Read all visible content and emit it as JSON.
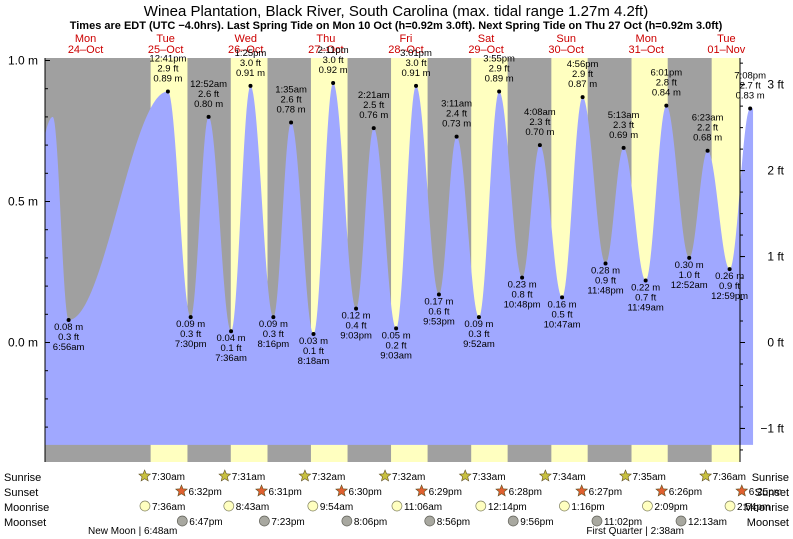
{
  "header": {
    "title": "Winea Plantation, Black River, South Carolina (max. tidal range 1.27m 4.2ft)",
    "subtitle": "Times are EDT (UTC −4.0hrs). Last Spring Tide on Mon 10 Oct (h=0.92m 3.0ft). Next Spring Tide on Thu 27 Oct (h=0.92m 3.0ft)"
  },
  "days": [
    {
      "name": "Mon",
      "date": "24–Oct"
    },
    {
      "name": "Tue",
      "date": "25–Oct"
    },
    {
      "name": "Wed",
      "date": "26–Oct"
    },
    {
      "name": "Thu",
      "date": "27–Oct"
    },
    {
      "name": "Fri",
      "date": "28–Oct"
    },
    {
      "name": "Sat",
      "date": "29–Oct"
    },
    {
      "name": "Sun",
      "date": "30–Oct"
    },
    {
      "name": "Mon",
      "date": "31–Oct"
    },
    {
      "name": "Tue",
      "date": "01–Nov"
    }
  ],
  "chart_data": {
    "type": "area",
    "y_unit_left": "m",
    "y_unit_right": "ft",
    "ylim_m": [
      -0.37,
      1.06
    ],
    "left_ticks": [
      "1.0 m",
      "0.5 m",
      "0.0 m"
    ],
    "left_tick_values": [
      1.0,
      0.5,
      0.0
    ],
    "right_ticks": [
      "3 ft",
      "2 ft",
      "1 ft",
      "0 ft",
      "−1 ft"
    ],
    "right_tick_values": [
      3,
      2,
      1,
      0,
      -1
    ],
    "x_start": "24-Oct 00:00",
    "x_end": "02-Nov 00:00",
    "x_unit": "hours since 24-Oct 00:00",
    "data_range_hours": [
      0,
      212
    ],
    "first_high": {
      "hour": 2.2,
      "m": 0.8
    },
    "daylight": [
      {
        "sunrise": "25-Oct 07:30",
        "sunset": "25-Oct 18:32"
      },
      {
        "sunrise": "26-Oct 07:31",
        "sunset": "26-Oct 18:31"
      },
      {
        "sunrise": "27-Oct 07:32",
        "sunset": "27-Oct 18:30"
      },
      {
        "sunrise": "28-Oct 07:32",
        "sunset": "28-Oct 18:29"
      },
      {
        "sunrise": "29-Oct 07:33",
        "sunset": "29-Oct 18:28"
      },
      {
        "sunrise": "30-Oct 07:34",
        "sunset": "30-Oct 18:27"
      },
      {
        "sunrise": "31-Oct 07:35",
        "sunset": "31-Oct 18:26"
      },
      {
        "sunrise": "01-Nov 07:36",
        "sunset": "01-Nov 18:25"
      }
    ],
    "tides": [
      {
        "hour": 6.93,
        "time": "6:56 am",
        "m": 0.08,
        "m_label": "0.08 m",
        "ft_label": "0.3 ft",
        "type": "low"
      },
      {
        "hour": 36.68,
        "time": "12:41 pm",
        "m": 0.89,
        "m_label": "0.89 m",
        "ft_label": "2.9 ft",
        "type": "high"
      },
      {
        "hour": 43.5,
        "time": "7:30 pm",
        "m": 0.09,
        "m_label": "0.09 m",
        "ft_label": "0.3 ft",
        "type": "low"
      },
      {
        "hour": 48.87,
        "time": "12:52 am",
        "m": 0.8,
        "m_label": "0.80 m",
        "ft_label": "2.6 ft",
        "type": "high"
      },
      {
        "hour": 55.6,
        "time": "7:36 am",
        "m": 0.04,
        "m_label": "0.04 m",
        "ft_label": "0.1 ft",
        "type": "low"
      },
      {
        "hour": 61.42,
        "time": "1:25 pm",
        "m": 0.91,
        "m_label": "0.91 m",
        "ft_label": "3.0 ft",
        "type": "high"
      },
      {
        "hour": 68.27,
        "time": "8:16 pm",
        "m": 0.09,
        "m_label": "0.09 m",
        "ft_label": "0.3 ft",
        "type": "low"
      },
      {
        "hour": 73.58,
        "time": "1:35 am",
        "m": 0.78,
        "m_label": "0.78 m",
        "ft_label": "2.6 ft",
        "type": "high"
      },
      {
        "hour": 80.3,
        "time": "8:18 am",
        "m": 0.03,
        "m_label": "0.03 m",
        "ft_label": "0.1 ft",
        "type": "low"
      },
      {
        "hour": 86.18,
        "time": "2:11 pm",
        "m": 0.92,
        "m_label": "0.92 m",
        "ft_label": "3.0 ft",
        "type": "high"
      },
      {
        "hour": 93.05,
        "time": "9:03 pm",
        "m": 0.12,
        "m_label": "0.12 m",
        "ft_label": "0.4 ft",
        "type": "low"
      },
      {
        "hour": 98.35,
        "time": "2:21 am",
        "m": 0.76,
        "m_label": "0.76 m",
        "ft_label": "2.5 ft",
        "type": "high"
      },
      {
        "hour": 105.05,
        "time": "9:03 am",
        "m": 0.05,
        "m_label": "0.05 m",
        "ft_label": "0.2 ft",
        "type": "low"
      },
      {
        "hour": 111.02,
        "time": "3:01 pm",
        "m": 0.91,
        "m_label": "0.91 m",
        "ft_label": "3.0 ft",
        "type": "high"
      },
      {
        "hour": 117.88,
        "time": "9:53 pm",
        "m": 0.17,
        "m_label": "0.17 m",
        "ft_label": "0.6 ft",
        "type": "low"
      },
      {
        "hour": 123.18,
        "time": "3:11 am",
        "m": 0.73,
        "m_label": "0.73 m",
        "ft_label": "2.4 ft",
        "type": "high"
      },
      {
        "hour": 129.87,
        "time": "9:52 am",
        "m": 0.09,
        "m_label": "0.09 m",
        "ft_label": "0.3 ft",
        "type": "low"
      },
      {
        "hour": 135.92,
        "time": "3:55 pm",
        "m": 0.89,
        "m_label": "0.89 m",
        "ft_label": "2.9 ft",
        "type": "high"
      },
      {
        "hour": 142.8,
        "time": "10:48 pm",
        "m": 0.23,
        "m_label": "0.23 m",
        "ft_label": "0.8 ft",
        "type": "low"
      },
      {
        "hour": 148.13,
        "time": "4:08 am",
        "m": 0.7,
        "m_label": "0.70 m",
        "ft_label": "2.3 ft",
        "type": "high"
      },
      {
        "hour": 154.78,
        "time": "10:47 am",
        "m": 0.16,
        "m_label": "0.16 m",
        "ft_label": "0.5 ft",
        "type": "low"
      },
      {
        "hour": 160.93,
        "time": "4:56 pm",
        "m": 0.87,
        "m_label": "0.87 m",
        "ft_label": "2.9 ft",
        "type": "high"
      },
      {
        "hour": 167.8,
        "time": "11:48 pm",
        "m": 0.28,
        "m_label": "0.28 m",
        "ft_label": "0.9 ft",
        "type": "low"
      },
      {
        "hour": 173.22,
        "time": "5:13 am",
        "m": 0.69,
        "m_label": "0.69 m",
        "ft_label": "2.3 ft",
        "type": "high"
      },
      {
        "hour": 179.82,
        "time": "11:49 am",
        "m": 0.22,
        "m_label": "0.22 m",
        "ft_label": "0.7 ft",
        "type": "low"
      },
      {
        "hour": 186.02,
        "time": "6:01 pm",
        "m": 0.84,
        "m_label": "0.84 m",
        "ft_label": "2.8 ft",
        "type": "high"
      },
      {
        "hour": 192.87,
        "time": "12:52 am",
        "m": 0.3,
        "m_label": "0.30 m",
        "ft_label": "1.0 ft",
        "type": "low"
      },
      {
        "hour": 198.38,
        "time": "6:23 am",
        "m": 0.68,
        "m_label": "0.68 m",
        "ft_label": "2.2 ft",
        "type": "high"
      },
      {
        "hour": 204.98,
        "time": "12:59 pm",
        "m": 0.26,
        "m_label": "0.26 m",
        "ft_label": "0.9 ft",
        "type": "low"
      },
      {
        "hour": 211.13,
        "time": "7:08 pm",
        "m": 0.83,
        "m_label": "0.83 m",
        "ft_label": "2.7 ft",
        "type": "high"
      }
    ],
    "colors": {
      "night": "#a0a0a0",
      "day": "#ffffc0",
      "water": "#a0a8ff",
      "day_label": "#cc0000",
      "sunrise_star": "#c8c040",
      "sunset_star": "#e06030",
      "moonrise": "#ffffc0",
      "moonset": "#a8a8a0"
    }
  },
  "events": {
    "labels": {
      "sunrise": "Sunrise",
      "sunset": "Sunset",
      "moonrise": "Moonrise",
      "moonset": "Moonset"
    },
    "sunrise": [
      {
        "hour": 31.5,
        "time": "7:30am"
      },
      {
        "hour": 55.52,
        "time": "7:31am"
      },
      {
        "hour": 79.53,
        "time": "7:32am"
      },
      {
        "hour": 103.53,
        "time": "7:32am"
      },
      {
        "hour": 127.55,
        "time": "7:33am"
      },
      {
        "hour": 151.57,
        "time": "7:34am"
      },
      {
        "hour": 175.58,
        "time": "7:35am"
      },
      {
        "hour": 199.6,
        "time": "7:36am"
      }
    ],
    "sunset": [
      {
        "hour": 42.53,
        "time": "6:32pm"
      },
      {
        "hour": 66.52,
        "time": "6:31pm"
      },
      {
        "hour": 90.5,
        "time": "6:30pm"
      },
      {
        "hour": 114.48,
        "time": "6:29pm"
      },
      {
        "hour": 138.47,
        "time": "6:28pm"
      },
      {
        "hour": 162.45,
        "time": "6:27pm"
      },
      {
        "hour": 186.43,
        "time": "6:26pm"
      },
      {
        "hour": 210.42,
        "time": "6:25pm"
      }
    ],
    "moonrise": [
      {
        "hour": 31.6,
        "time": "7:36am"
      },
      {
        "hour": 56.72,
        "time": "8:43am"
      },
      {
        "hour": 81.9,
        "time": "9:54am"
      },
      {
        "hour": 107.1,
        "time": "11:06am"
      },
      {
        "hour": 132.23,
        "time": "12:14pm"
      },
      {
        "hour": 157.27,
        "time": "1:16pm"
      },
      {
        "hour": 182.15,
        "time": "2:09pm"
      },
      {
        "hour": 206.9,
        "time": "2:54pm"
      }
    ],
    "moonset": [
      {
        "hour": 42.78,
        "time": "6:47pm"
      },
      {
        "hour": 67.38,
        "time": "7:23pm"
      },
      {
        "hour": 92.1,
        "time": "8:06pm"
      },
      {
        "hour": 116.93,
        "time": "8:56pm"
      },
      {
        "hour": 141.93,
        "time": "9:56pm"
      },
      {
        "hour": 167.03,
        "time": "11:02pm"
      },
      {
        "hour": 192.22,
        "time": "12:13am"
      }
    ],
    "moon_phases": [
      {
        "text": "New Moon | 6:48am",
        "align": "left"
      },
      {
        "text": "First Quarter | 2:38am",
        "align": "right"
      }
    ]
  }
}
